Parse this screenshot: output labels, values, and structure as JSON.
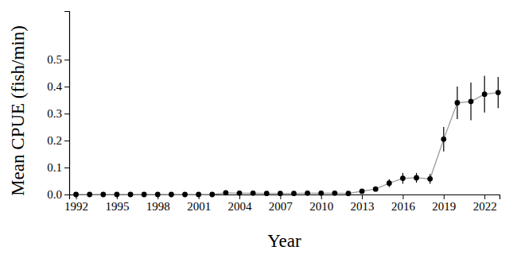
{
  "chart_data": {
    "type": "line",
    "x_label": "Year",
    "y_label": "Mean CPUE (fish/min)",
    "x": [
      1992,
      1993,
      1994,
      1995,
      1996,
      1997,
      1998,
      1999,
      2000,
      2001,
      2002,
      2003,
      2004,
      2005,
      2006,
      2007,
      2008,
      2009,
      2010,
      2011,
      2012,
      2013,
      2014,
      2015,
      2016,
      2017,
      2018,
      2019,
      2020,
      2021,
      2022,
      2023
    ],
    "values": [
      0,
      0,
      0,
      0,
      0,
      0,
      0,
      0,
      0,
      0,
      0,
      0.006,
      0.005,
      0.005,
      0.004,
      0.004,
      0.004,
      0.005,
      0.005,
      0.005,
      0.004,
      0.012,
      0.02,
      0.042,
      0.06,
      0.062,
      0.058,
      0.205,
      0.34,
      0.345,
      0.372,
      0.378
    ],
    "errors": [
      0,
      0,
      0,
      0,
      0,
      0,
      0,
      0,
      0,
      0,
      0,
      0.002,
      0.002,
      0.002,
      0.002,
      0.002,
      0.002,
      0.002,
      0.002,
      0.002,
      0.002,
      0.004,
      0.006,
      0.015,
      0.02,
      0.018,
      0.018,
      0.045,
      0.06,
      0.07,
      0.068,
      0.058
    ],
    "color": "#000000",
    "marker": "circle",
    "xlim": [
      1991.5,
      2023.1
    ],
    "xticks": [
      1992,
      1995,
      1998,
      2001,
      2004,
      2007,
      2010,
      2013,
      2016,
      2019,
      2022
    ],
    "ylim": [
      0,
      0.68
    ],
    "yticks": [
      {
        "value": 0,
        "label": "0.0"
      },
      0.1,
      0.2,
      0.3,
      0.4,
      0.5
    ],
    "grid": false
  }
}
